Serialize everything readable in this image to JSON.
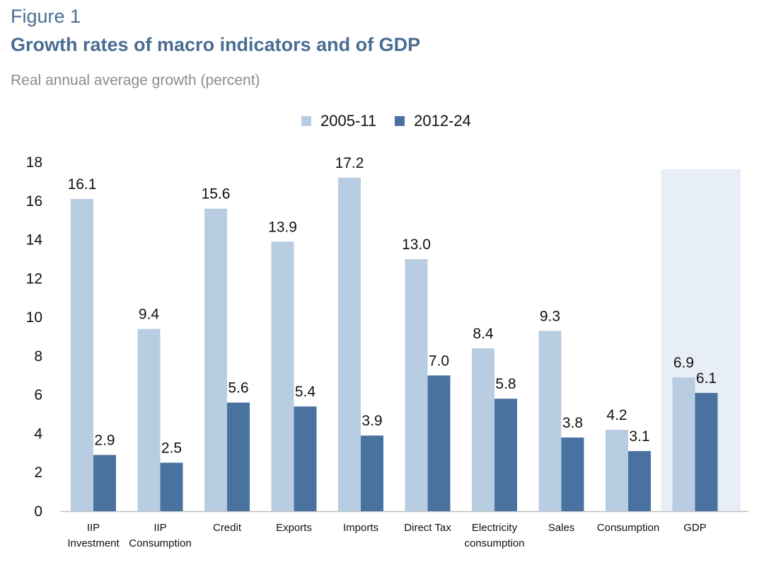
{
  "header": {
    "figure_number": "Figure 1",
    "title": "Growth rates of macro indicators and of GDP",
    "subtitle": "Real annual average growth (percent)"
  },
  "legend": [
    {
      "label": "2005-11",
      "color": "#b9cde2"
    },
    {
      "label": "2012-24",
      "color": "#4a72a0"
    }
  ],
  "colors": {
    "highlight_band": "#e8eef6",
    "axis": "#bfbfbf"
  },
  "chart_data": {
    "type": "bar",
    "title": "Growth rates of macro indicators and of GDP",
    "subtitle": "Real annual average growth (percent)",
    "xlabel": "",
    "ylabel": "",
    "ylim": [
      0,
      18
    ],
    "yticks": [
      0,
      2,
      4,
      6,
      8,
      10,
      12,
      14,
      16,
      18
    ],
    "grid": false,
    "legend_position": "top-center",
    "highlighted_category": "GDP",
    "categories": [
      [
        "IIP",
        "Investment"
      ],
      [
        "IIP",
        "Consumption"
      ],
      [
        "Credit"
      ],
      [
        "Exports"
      ],
      [
        "Imports"
      ],
      [
        "Direct Tax"
      ],
      [
        "Electricity",
        "consumption"
      ],
      [
        "Sales"
      ],
      [
        "Consumption"
      ],
      [
        "GDP"
      ]
    ],
    "series": [
      {
        "name": "2005-11",
        "values": [
          16.1,
          9.4,
          15.6,
          13.9,
          17.2,
          13.0,
          8.4,
          9.3,
          4.2,
          6.9
        ]
      },
      {
        "name": "2012-24",
        "values": [
          2.9,
          2.5,
          5.6,
          5.4,
          3.9,
          7.0,
          5.8,
          3.8,
          3.1,
          6.1
        ]
      }
    ]
  }
}
